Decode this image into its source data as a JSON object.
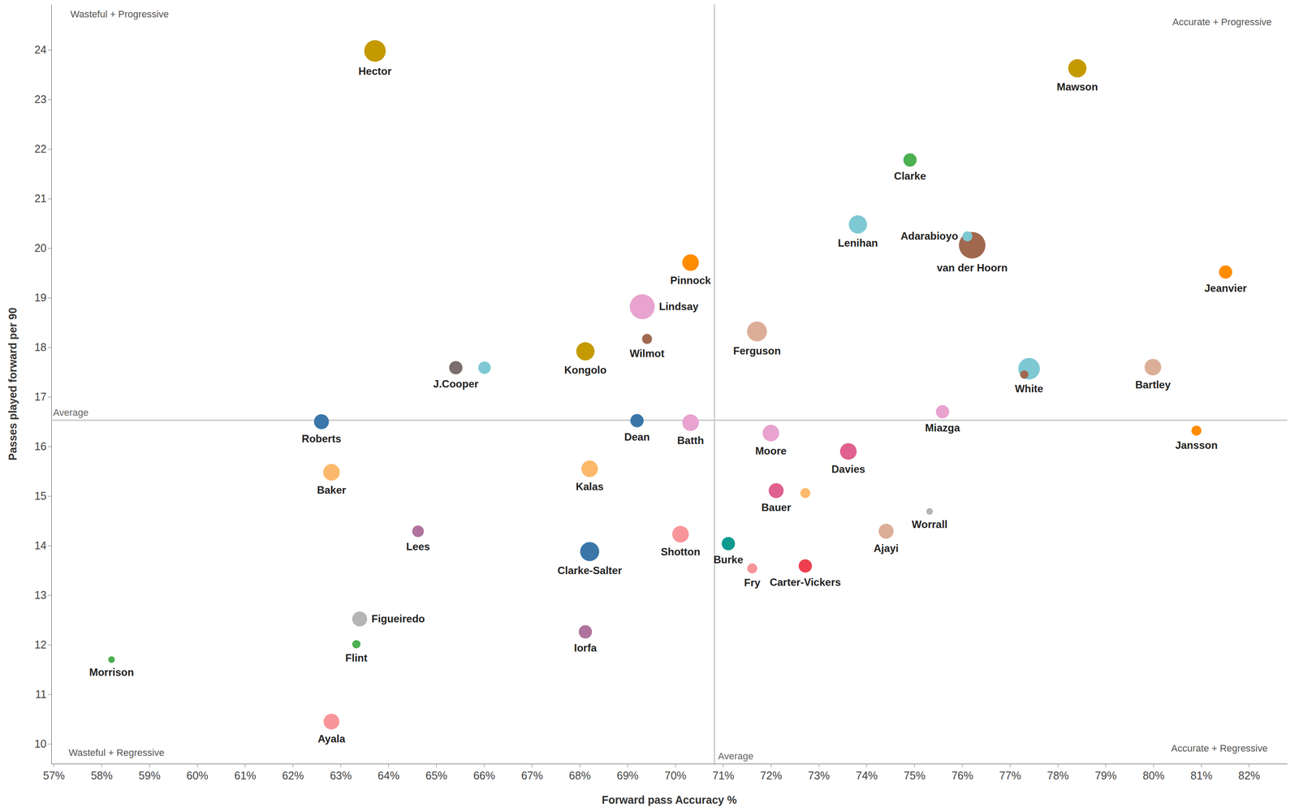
{
  "chart_data": {
    "type": "scatter",
    "x_label": "Forward pass Accuracy %",
    "y_label": "Passes played forward per 90",
    "quadrant_labels": [
      "Wasteful + Progressive",
      "Accurate + Progressive",
      "Wasteful + Regressive",
      "Accurate + Regressive"
    ],
    "average_lines": [
      {
        "axis": "x",
        "value": 70.82,
        "label": "Average"
      },
      {
        "axis": "y",
        "value": 16.53,
        "label": "Average"
      }
    ],
    "xlim": [
      56.95,
      82.8
    ],
    "xticks": [
      {
        "value": 57,
        "label": "57%"
      },
      {
        "value": 58,
        "label": "58%"
      },
      {
        "value": 59,
        "label": "59%"
      },
      {
        "value": 60,
        "label": "60%"
      },
      {
        "value": 61,
        "label": "61%"
      },
      {
        "value": 62,
        "label": "62%"
      },
      {
        "value": 63,
        "label": "63%"
      },
      {
        "value": 64,
        "label": "64%"
      },
      {
        "value": 65,
        "label": "65%"
      },
      {
        "value": 66,
        "label": "66%"
      },
      {
        "value": 67,
        "label": "67%"
      },
      {
        "value": 68,
        "label": "68%"
      },
      {
        "value": 69,
        "label": "69%"
      },
      {
        "value": 70,
        "label": "70%"
      },
      {
        "value": 71,
        "label": "71%"
      },
      {
        "value": 72,
        "label": "72%"
      },
      {
        "value": 73,
        "label": "73%"
      },
      {
        "value": 74,
        "label": "74%"
      },
      {
        "value": 75,
        "label": "75%"
      },
      {
        "value": 76,
        "label": "76%"
      },
      {
        "value": 77,
        "label": "77%"
      },
      {
        "value": 78,
        "label": "78%"
      },
      {
        "value": 79,
        "label": "79%"
      },
      {
        "value": 80,
        "label": "80%"
      },
      {
        "value": 81,
        "label": "81%"
      },
      {
        "value": 82,
        "label": "82%"
      }
    ],
    "ylim": [
      9.6,
      24.92
    ],
    "yticks": [
      10,
      11,
      12,
      13,
      14,
      15,
      16,
      17,
      18,
      19,
      20,
      21,
      22,
      23,
      24
    ],
    "grid": false,
    "labels": [
      "Hector",
      "Mawson",
      "Clarke",
      "Lenihan",
      "Adarabioyo",
      "van der Hoorn",
      "Jeanvier",
      "Pinnock",
      "Lindsay",
      "Wilmot",
      "Ferguson",
      "Kongolo",
      "J.Cooper",
      null,
      null,
      "White",
      "Bartley",
      "Miazga",
      "Roberts",
      "Dean",
      "Batth",
      "Jansson",
      "Moore",
      "Davies",
      "Baker",
      "Kalas",
      "Bauer",
      null,
      "Worrall",
      "Lees",
      "Ajayi",
      "Shotton",
      "Burke",
      "Clarke-Salter",
      "Fry",
      "Carter-Vickers",
      "Figueiredo",
      "Iorfa",
      "Flint",
      "Morrison",
      "Ayala"
    ],
    "x": [
      63.72,
      78.41,
      74.91,
      73.82,
      76.11,
      76.21,
      81.51,
      70.32,
      69.31,
      69.41,
      71.71,
      68.12,
      65.41,
      66.01,
      77.3,
      77.4,
      79.99,
      75.59,
      62.6,
      69.2,
      70.32,
      80.9,
      72.0,
      73.62,
      62.81,
      68.21,
      72.11,
      72.72,
      75.32,
      64.62,
      74.41,
      70.11,
      71.11,
      68.21,
      71.61,
      72.72,
      63.4,
      68.12,
      63.33,
      58.21,
      62.81
    ],
    "values": [
      23.98,
      23.63,
      21.78,
      20.48,
      20.24,
      20.06,
      19.52,
      19.71,
      18.82,
      18.17,
      18.32,
      17.92,
      17.59,
      17.59,
      17.45,
      17.57,
      17.6,
      16.7,
      16.5,
      16.52,
      16.48,
      16.32,
      16.27,
      15.9,
      15.48,
      15.55,
      15.11,
      15.06,
      14.69,
      14.29,
      14.29,
      14.23,
      14.04,
      13.88,
      13.54,
      13.59,
      12.52,
      12.26,
      12.01,
      11.7,
      10.45
    ],
    "sizes": [
      169,
      121,
      64,
      121,
      36,
      256,
      64,
      100,
      225,
      36,
      144,
      121,
      64,
      56,
      25,
      169,
      100,
      64,
      81,
      64,
      100,
      36,
      100,
      100,
      100,
      100,
      81,
      36,
      16,
      49,
      81,
      100,
      64,
      132,
      36,
      64,
      81,
      64,
      25,
      16,
      90
    ],
    "colors": [
      "#c49a00",
      "#c49a00",
      "#4caf50",
      "#7ec8d3",
      "#7ec8d3",
      "#a0694f",
      "#ff8c00",
      "#ff8c00",
      "#e8a3cf",
      "#a0694f",
      "#dcae98",
      "#c49a00",
      "#7a6e6e",
      "#7ec8d3",
      "#a0694f",
      "#7ec8d3",
      "#dcae98",
      "#e8a3cf",
      "#3a76a8",
      "#3a76a8",
      "#e8a3cf",
      "#ff8c00",
      "#e8a3cf",
      "#e0608e",
      "#fdb96b",
      "#fdb96b",
      "#e0608e",
      "#fdb96b",
      "#b5b5b5",
      "#b0739e",
      "#dcae98",
      "#f8959a",
      "#0e9a8e",
      "#3a76a8",
      "#f8959a",
      "#ee3f4f",
      "#b5b5b5",
      "#b0739e",
      "#4caf50",
      "#4caf50",
      "#f8959a"
    ]
  }
}
